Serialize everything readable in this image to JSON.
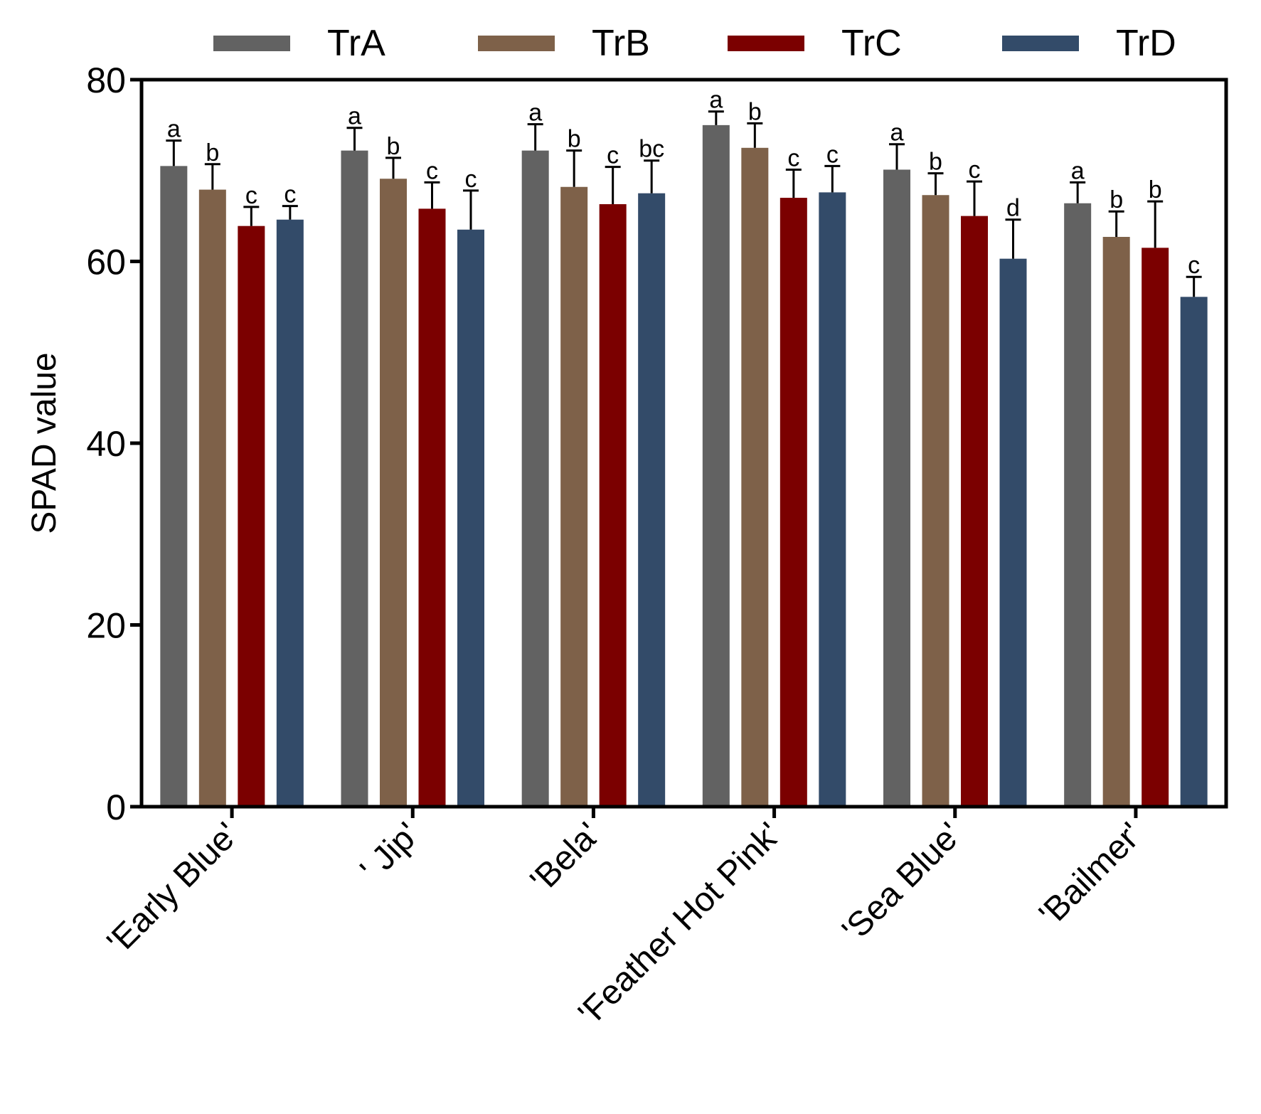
{
  "chart_data": {
    "type": "bar",
    "title": "",
    "xlabel": "",
    "ylabel": "SPAD value",
    "ylim": [
      0,
      80
    ],
    "yticks": [
      0,
      20,
      40,
      60,
      80
    ],
    "grid": false,
    "legend_position": "top",
    "categories": [
      "'Early Blue'",
      "' Jip'",
      "'Bela'",
      "'Feather Hot Pink'",
      "'Sea Blue'",
      "'Bailmer'"
    ],
    "series": [
      {
        "name": "TrA",
        "color": "#626262",
        "values": [
          70.5,
          72.2,
          72.2,
          75.0,
          70.1,
          66.4
        ],
        "errors": [
          2.8,
          2.5,
          2.9,
          1.5,
          2.8,
          2.3
        ],
        "letters": [
          "a",
          "a",
          "a",
          "a",
          "a",
          "a"
        ]
      },
      {
        "name": "TrB",
        "color": "#7e6149",
        "values": [
          67.9,
          69.1,
          68.2,
          72.5,
          67.3,
          62.7
        ],
        "errors": [
          2.8,
          2.3,
          4.0,
          2.7,
          2.4,
          2.8
        ],
        "letters": [
          "b",
          "b",
          "b",
          "b",
          "b",
          "b"
        ]
      },
      {
        "name": "TrC",
        "color": "#7b0000",
        "values": [
          63.9,
          65.8,
          66.3,
          67.0,
          65.0,
          61.5
        ],
        "errors": [
          2.1,
          2.9,
          4.1,
          3.1,
          3.8,
          5.1
        ],
        "letters": [
          "c",
          "c",
          "c",
          "c",
          "c",
          "b"
        ]
      },
      {
        "name": "TrD",
        "color": "#334b69",
        "values": [
          64.6,
          63.5,
          67.5,
          67.6,
          60.3,
          56.1
        ],
        "errors": [
          1.5,
          4.3,
          3.6,
          2.9,
          4.3,
          2.2
        ],
        "letters": [
          "c",
          "c",
          "bc",
          "c",
          "d",
          "c"
        ]
      }
    ]
  }
}
